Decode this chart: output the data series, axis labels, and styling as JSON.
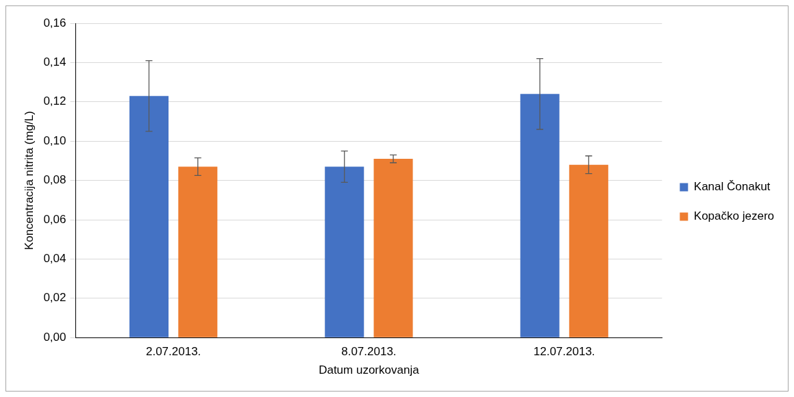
{
  "chart_data": {
    "type": "bar",
    "xlabel": "Datum uzorkovanja",
    "ylabel": "Koncentracija nitrita (mg/L)",
    "categories": [
      "2.07.2013.",
      "8.07.2013.",
      "12.07.2013."
    ],
    "series": [
      {
        "name": "Kanal Čonakut",
        "color": "#4472c4",
        "values": [
          0.123,
          0.087,
          0.124
        ],
        "errors": [
          0.018,
          0.008,
          0.018
        ]
      },
      {
        "name": "Kopačko jezero",
        "color": "#ed7d31",
        "values": [
          0.087,
          0.091,
          0.088
        ],
        "errors": [
          0.0045,
          0.002,
          0.0045
        ]
      }
    ],
    "ylim": [
      0,
      0.16
    ],
    "yticks": [
      {
        "value": 0,
        "label": "0,00"
      },
      {
        "value": 0.02,
        "label": "0,02"
      },
      {
        "value": 0.04,
        "label": "0,04"
      },
      {
        "value": 0.06,
        "label": "0,06"
      },
      {
        "value": 0.08,
        "label": "0,08"
      },
      {
        "value": 0.1,
        "label": "0,10"
      },
      {
        "value": 0.12,
        "label": "0,12"
      },
      {
        "value": 0.14,
        "label": "0,14"
      },
      {
        "value": 0.16,
        "label": "0,16"
      }
    ],
    "grid": "y",
    "legend": "right"
  }
}
